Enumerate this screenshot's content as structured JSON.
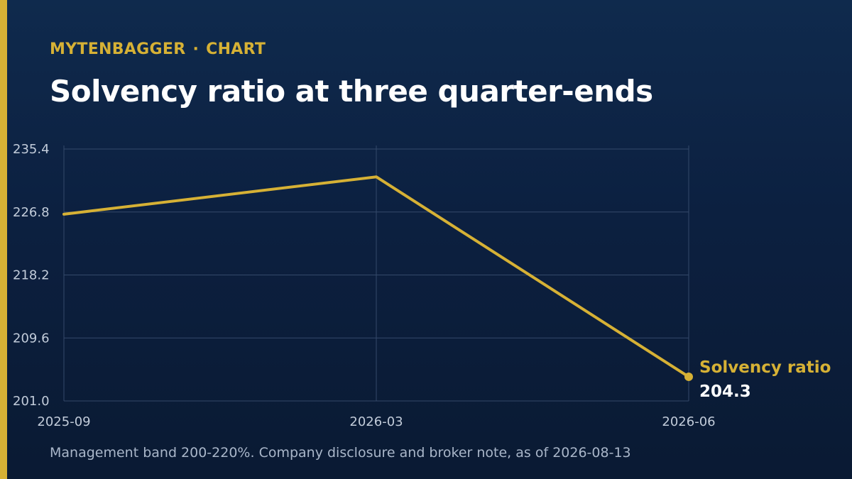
{
  "header": {
    "brand": "MYTENBAGGER",
    "separator": "·",
    "section": "CHART",
    "title": "Solvency ratio at three quarter-ends"
  },
  "footnote": "Management band 200-220%. Company disclosure and broker note, as of 2026-08-13",
  "colors": {
    "accent": "#d6b135",
    "background": "#0c2040",
    "grid": "#3a5070",
    "text": "#ffffff"
  },
  "chart_data": {
    "type": "line",
    "title": "Solvency ratio at three quarter-ends",
    "xlabel": "",
    "ylabel": "",
    "x": [
      "2025-09",
      "2026-03",
      "2026-06"
    ],
    "x_ticks": [
      "2025-09",
      "2026-03",
      "2026-06"
    ],
    "y_ticks": [
      "235.4",
      "226.8",
      "218.2",
      "209.6",
      "201.0"
    ],
    "ylim": [
      201.0,
      235.4
    ],
    "series": [
      {
        "name": "Solvency ratio",
        "values": [
          226.5,
          231.6,
          204.3
        ],
        "end_label": "204.3",
        "color": "#d6b135"
      }
    ],
    "grid": true,
    "legend": "direct label at line end"
  }
}
